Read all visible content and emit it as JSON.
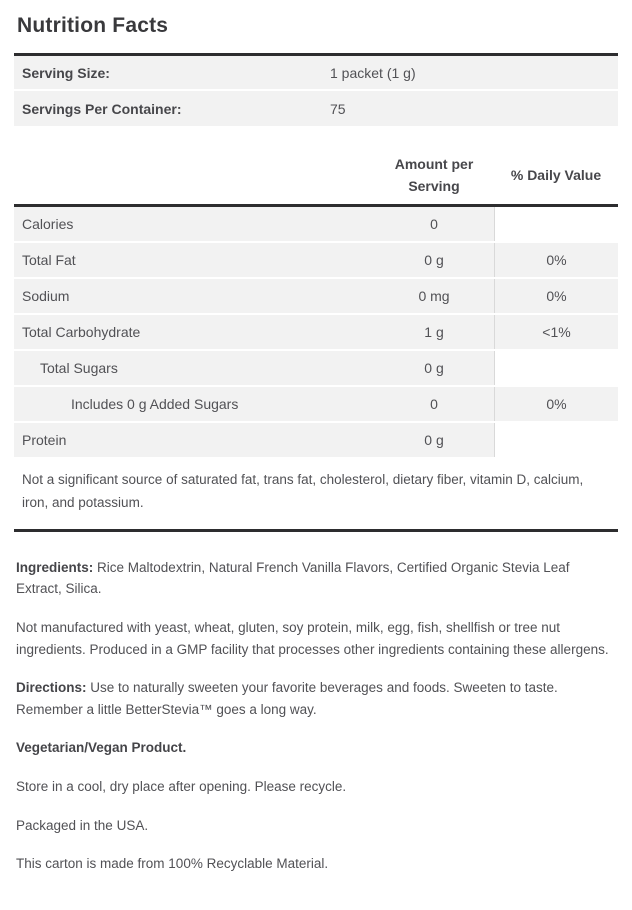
{
  "title": "Nutrition Facts",
  "colors": {
    "rule_dark": "#2d2d2f",
    "row_background": "#f2f2f2",
    "column_divider": "#d9d9d9",
    "text": "#515155"
  },
  "serving": {
    "rows": [
      {
        "label": "Serving Size:",
        "value": "1 packet (1 g)"
      },
      {
        "label": "Servings Per Container:",
        "value": "75"
      }
    ]
  },
  "table": {
    "amount_header": "Amount per Serving",
    "daily_header": "% Daily Value",
    "rows": [
      {
        "label": "Calories",
        "indent": 0,
        "amount": "0",
        "daily": ""
      },
      {
        "label": "Total Fat",
        "indent": 0,
        "amount": "0 g",
        "daily": "0%"
      },
      {
        "label": "Sodium",
        "indent": 0,
        "amount": "0 mg",
        "daily": "0%"
      },
      {
        "label": "Total Carbohydrate",
        "indent": 0,
        "amount": "1 g",
        "daily": "<1%"
      },
      {
        "label": "Total Sugars",
        "indent": 1,
        "amount": "0 g",
        "daily": ""
      },
      {
        "label": "Includes 0 g Added Sugars",
        "indent": 2,
        "amount": "0",
        "daily": "0%"
      },
      {
        "label": "Protein",
        "indent": 0,
        "amount": "0 g",
        "daily": ""
      }
    ],
    "footnote": "Not a significant source of saturated fat, trans fat, cholesterol, dietary fiber, vitamin D, calcium, iron, and potassium."
  },
  "details": {
    "ingredients_label": "Ingredients:",
    "ingredients_text": "Rice Maltodextrin, Natural French Vanilla Flavors, Certified Organic Stevia Leaf Extract, Silica.",
    "allergen_text": "Not manufactured with yeast, wheat, gluten, soy protein, milk, egg, fish, shellfish or tree nut ingredients. Produced in a GMP facility that processes other ingredients containing these allergens.",
    "directions_label": "Directions:",
    "directions_text": "Use to naturally sweeten your favorite beverages and foods. Sweeten to taste. Remember a little BetterStevia™ goes a long way.",
    "vegetarian_text": "Vegetarian/Vegan Product.",
    "storage_text": "Store in a cool, dry place after opening. Please recycle.",
    "packaged_text": "Packaged in the USA.",
    "carton_text": "This carton is made from 100% Recyclable Material."
  }
}
